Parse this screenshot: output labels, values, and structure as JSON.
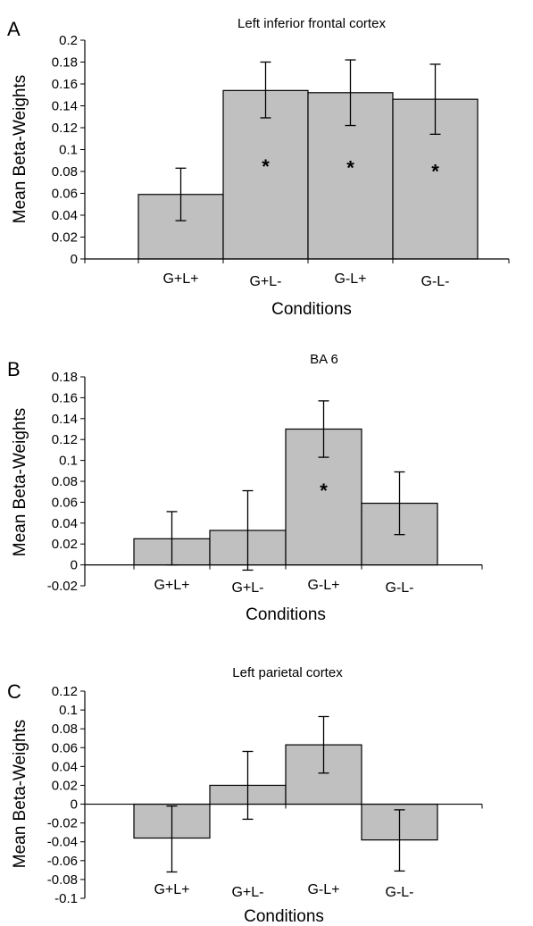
{
  "chart_data": [
    {
      "panel": "A",
      "type": "bar",
      "title": "Left inferior frontal cortex",
      "xlabel": "Conditions",
      "ylabel": "Mean Beta-Weights",
      "categories": [
        "G+L+",
        "G+L-",
        "G-L+",
        "G-L-"
      ],
      "values": [
        0.059,
        0.154,
        0.152,
        0.146
      ],
      "errors_low": [
        0.035,
        0.129,
        0.122,
        0.114
      ],
      "errors_high": [
        0.083,
        0.18,
        0.182,
        0.178
      ],
      "significance": [
        "",
        "*",
        "*",
        "*"
      ],
      "ylim": [
        0,
        0.2
      ],
      "yticks": [
        0,
        0.02,
        0.04,
        0.06,
        0.08,
        0.1,
        0.12,
        0.14,
        0.16,
        0.18,
        0.2
      ],
      "ytick_labels": [
        "0",
        "0.02",
        "0.04",
        "0.06",
        "0.08",
        "0.1",
        "0.12",
        "0.14",
        "0.16",
        "0.18",
        "0.2"
      ],
      "bar_color": "#c0c0c0",
      "grid": false
    },
    {
      "panel": "B",
      "type": "bar",
      "title": "BA 6",
      "xlabel": "Conditions",
      "ylabel": "Mean Beta-Weights",
      "categories": [
        "G+L+",
        "G+L-",
        "G-L+",
        "G-L-"
      ],
      "values": [
        0.025,
        0.033,
        0.13,
        0.059
      ],
      "errors_low": [
        0.0,
        -0.005,
        0.103,
        0.029
      ],
      "errors_high": [
        0.051,
        0.071,
        0.157,
        0.089
      ],
      "significance": [
        "",
        "",
        "*",
        ""
      ],
      "ylim": [
        -0.02,
        0.18
      ],
      "yticks": [
        -0.02,
        0,
        0.02,
        0.04,
        0.06,
        0.08,
        0.1,
        0.12,
        0.14,
        0.16,
        0.18
      ],
      "ytick_labels": [
        "-0.02",
        "0",
        "0.02",
        "0.04",
        "0.06",
        "0.08",
        "0.1",
        "0.12",
        "0.14",
        "0.16",
        "0.18"
      ],
      "bar_color": "#c0c0c0",
      "grid": false
    },
    {
      "panel": "C",
      "type": "bar",
      "title": "Left parietal cortex",
      "xlabel": "Conditions",
      "ylabel": "Mean Beta-Weights",
      "categories": [
        "G+L+",
        "G+L-",
        "G-L+",
        "G-L-"
      ],
      "values": [
        -0.036,
        0.02,
        0.063,
        -0.038
      ],
      "errors_low": [
        -0.072,
        -0.016,
        0.033,
        -0.071
      ],
      "errors_high": [
        -0.002,
        0.056,
        0.093,
        -0.006
      ],
      "significance": [
        "",
        "",
        "",
        ""
      ],
      "ylim": [
        -0.1,
        0.12
      ],
      "yticks": [
        -0.1,
        -0.08,
        -0.06,
        -0.04,
        -0.02,
        0,
        0.02,
        0.04,
        0.06,
        0.08,
        0.1,
        0.12
      ],
      "ytick_labels": [
        "-0.1",
        "-0.08",
        "-0.06",
        "-0.04",
        "-0.02",
        "0",
        "0.02",
        "0.04",
        "0.06",
        "0.08",
        "0.1",
        "0.12"
      ],
      "bar_color": "#c0c0c0",
      "grid": false
    }
  ]
}
